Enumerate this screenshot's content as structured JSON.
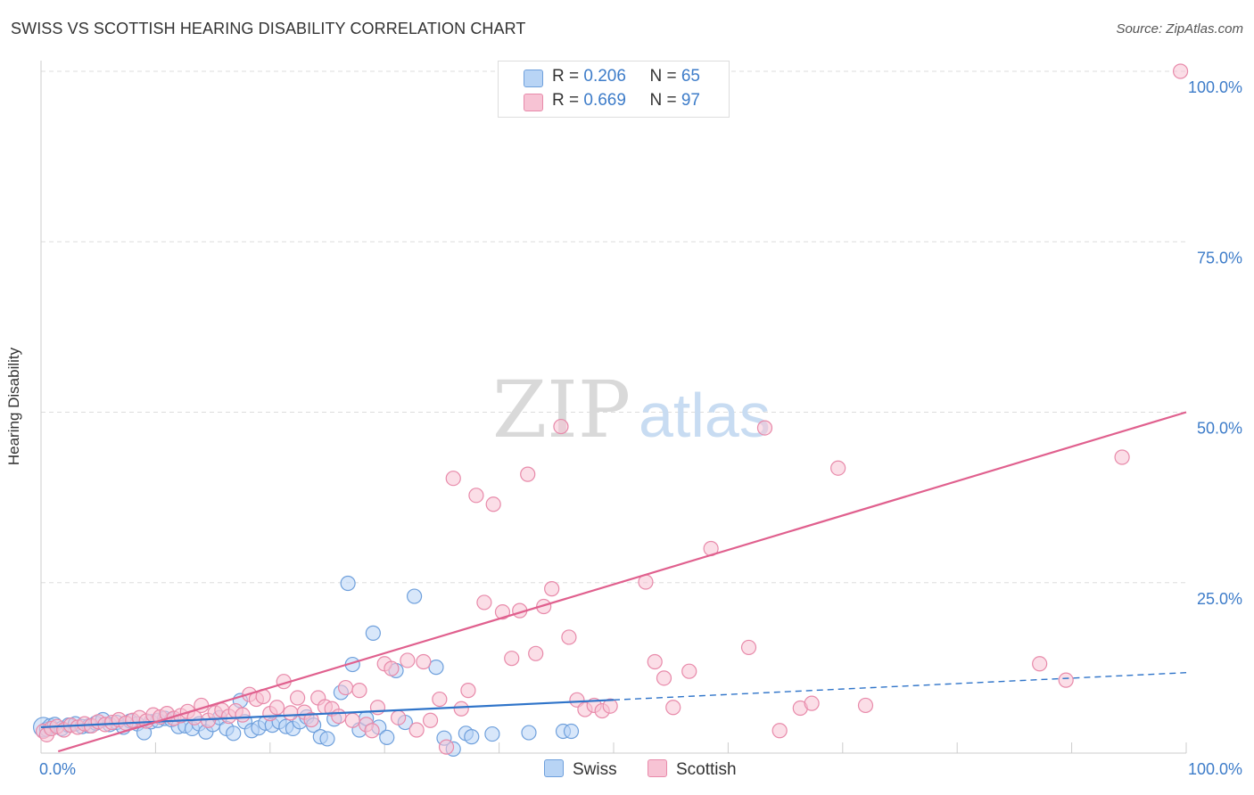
{
  "header": {
    "title": "SWISS VS SCOTTISH HEARING DISABILITY CORRELATION CHART",
    "source": "Source: ZipAtlas.com"
  },
  "watermark": {
    "zip": "ZIP",
    "atlas": "atlas"
  },
  "legend": {
    "swiss": {
      "r_label": "R = ",
      "r_value": "0.206",
      "n_label": "N = ",
      "n_value": "65"
    },
    "scottish": {
      "r_label": "R = ",
      "r_value": "0.669",
      "n_label": "N = ",
      "n_value": "97"
    }
  },
  "bottom_legend": {
    "swiss": "Swiss",
    "scottish": "Scottish"
  },
  "colors": {
    "swiss_fill": "#b8d4f5",
    "swiss_stroke": "#6fa0dc",
    "swiss_line": "#2f74c9",
    "scottish_fill": "#f7c3d4",
    "scottish_stroke": "#e88aaa",
    "scottish_line": "#e0608e",
    "tick_label": "#3d7cc9",
    "grid": "#dddddd"
  },
  "chart_data": {
    "type": "scatter",
    "title": "SWISS VS SCOTTISH HEARING DISABILITY CORRELATION CHART",
    "xlabel": "",
    "ylabel": "Hearing Disability",
    "xlim": [
      0,
      100
    ],
    "ylim": [
      0,
      100
    ],
    "x_tick_labels": [
      "0.0%",
      "100.0%"
    ],
    "y_ticks": [
      25,
      50,
      75,
      100
    ],
    "y_tick_labels": [
      "25.0%",
      "50.0%",
      "75.0%",
      "100.0%"
    ],
    "grid": true,
    "legend_position": "top-center",
    "series": [
      {
        "name": "Swiss",
        "R": 0.206,
        "N": 65,
        "trend": {
          "x0": 0,
          "y0": 3.8,
          "x1": 100,
          "y1": 11.8,
          "solid_until_x": 50
        },
        "points": [
          [
            0.2,
            3.8
          ],
          [
            0.5,
            3.5
          ],
          [
            0.8,
            4.0
          ],
          [
            1.2,
            4.2
          ],
          [
            1.8,
            3.6
          ],
          [
            2.4,
            4.1
          ],
          [
            3.0,
            4.3
          ],
          [
            3.6,
            3.9
          ],
          [
            4.2,
            4.0
          ],
          [
            4.8,
            4.4
          ],
          [
            5.4,
            4.9
          ],
          [
            6.0,
            4.2
          ],
          [
            6.6,
            4.5
          ],
          [
            7.2,
            3.8
          ],
          [
            7.8,
            4.7
          ],
          [
            8.4,
            4.3
          ],
          [
            9.0,
            3.0
          ],
          [
            9.6,
            4.6
          ],
          [
            10.2,
            4.8
          ],
          [
            10.8,
            5.1
          ],
          [
            11.4,
            4.9
          ],
          [
            12.0,
            3.9
          ],
          [
            12.6,
            4.0
          ],
          [
            13.2,
            3.6
          ],
          [
            13.8,
            4.3
          ],
          [
            14.4,
            3.1
          ],
          [
            15.0,
            4.2
          ],
          [
            15.6,
            5.2
          ],
          [
            16.2,
            3.6
          ],
          [
            16.8,
            2.9
          ],
          [
            17.4,
            7.7
          ],
          [
            17.8,
            4.6
          ],
          [
            18.4,
            3.3
          ],
          [
            19.0,
            3.7
          ],
          [
            19.6,
            4.4
          ],
          [
            20.2,
            4.1
          ],
          [
            20.8,
            4.6
          ],
          [
            21.4,
            3.9
          ],
          [
            22.0,
            3.6
          ],
          [
            22.6,
            4.6
          ],
          [
            23.2,
            5.3
          ],
          [
            23.8,
            4.1
          ],
          [
            24.4,
            2.4
          ],
          [
            25.0,
            2.1
          ],
          [
            25.6,
            5.0
          ],
          [
            26.2,
            8.9
          ],
          [
            26.8,
            24.9
          ],
          [
            27.2,
            13.0
          ],
          [
            27.8,
            3.4
          ],
          [
            28.4,
            5.1
          ],
          [
            29.0,
            17.6
          ],
          [
            29.5,
            3.8
          ],
          [
            30.2,
            2.3
          ],
          [
            31.0,
            12.1
          ],
          [
            31.8,
            4.5
          ],
          [
            32.6,
            23.0
          ],
          [
            34.5,
            12.6
          ],
          [
            35.2,
            2.2
          ],
          [
            36.0,
            0.6
          ],
          [
            37.1,
            2.9
          ],
          [
            37.6,
            2.4
          ],
          [
            39.4,
            2.8
          ],
          [
            42.6,
            3.0
          ],
          [
            45.6,
            3.2
          ],
          [
            46.3,
            3.2
          ]
        ]
      },
      {
        "name": "Scottish",
        "R": 0.669,
        "N": 97,
        "trend": {
          "x0": 0,
          "y0": -0.5,
          "x1": 100,
          "y1": 50.0
        },
        "points": [
          [
            0.2,
            3.2
          ],
          [
            0.5,
            2.7
          ],
          [
            0.9,
            3.6
          ],
          [
            1.4,
            3.9
          ],
          [
            2.0,
            3.4
          ],
          [
            2.6,
            4.1
          ],
          [
            3.2,
            3.8
          ],
          [
            3.8,
            4.3
          ],
          [
            4.4,
            4.0
          ],
          [
            5.0,
            4.6
          ],
          [
            5.6,
            4.2
          ],
          [
            6.2,
            4.5
          ],
          [
            6.8,
            4.9
          ],
          [
            7.4,
            4.4
          ],
          [
            8.0,
            4.8
          ],
          [
            8.6,
            5.2
          ],
          [
            9.2,
            4.7
          ],
          [
            9.8,
            5.6
          ],
          [
            10.4,
            5.3
          ],
          [
            11.0,
            5.8
          ],
          [
            11.6,
            5.1
          ],
          [
            12.2,
            5.5
          ],
          [
            12.8,
            6.1
          ],
          [
            13.4,
            5.2
          ],
          [
            14.0,
            7.0
          ],
          [
            14.6,
            4.8
          ],
          [
            15.2,
            5.9
          ],
          [
            15.8,
            6.3
          ],
          [
            16.4,
            5.4
          ],
          [
            17.0,
            6.2
          ],
          [
            17.6,
            5.6
          ],
          [
            18.2,
            8.6
          ],
          [
            18.8,
            7.9
          ],
          [
            19.4,
            8.3
          ],
          [
            20.0,
            5.8
          ],
          [
            20.6,
            6.7
          ],
          [
            21.2,
            10.5
          ],
          [
            21.8,
            5.9
          ],
          [
            22.4,
            8.1
          ],
          [
            23.0,
            6.0
          ],
          [
            23.6,
            4.9
          ],
          [
            24.2,
            8.1
          ],
          [
            24.8,
            6.8
          ],
          [
            25.4,
            6.5
          ],
          [
            26.0,
            5.4
          ],
          [
            26.6,
            9.6
          ],
          [
            27.2,
            4.8
          ],
          [
            27.8,
            9.2
          ],
          [
            28.4,
            4.2
          ],
          [
            28.9,
            3.3
          ],
          [
            29.4,
            6.7
          ],
          [
            30.0,
            13.1
          ],
          [
            30.6,
            12.4
          ],
          [
            31.2,
            5.2
          ],
          [
            32.0,
            13.6
          ],
          [
            32.8,
            3.4
          ],
          [
            33.4,
            13.4
          ],
          [
            34.0,
            4.8
          ],
          [
            34.8,
            7.9
          ],
          [
            35.4,
            0.9
          ],
          [
            36.0,
            40.3
          ],
          [
            36.7,
            6.5
          ],
          [
            37.3,
            9.2
          ],
          [
            38.0,
            37.8
          ],
          [
            38.7,
            22.1
          ],
          [
            39.5,
            36.5
          ],
          [
            40.3,
            20.7
          ],
          [
            41.1,
            13.9
          ],
          [
            41.8,
            20.9
          ],
          [
            42.5,
            40.9
          ],
          [
            43.2,
            14.6
          ],
          [
            43.9,
            21.5
          ],
          [
            44.6,
            24.1
          ],
          [
            45.4,
            47.9
          ],
          [
            46.1,
            17.0
          ],
          [
            46.8,
            7.8
          ],
          [
            47.5,
            6.4
          ],
          [
            48.3,
            7.0
          ],
          [
            49.0,
            6.2
          ],
          [
            49.7,
            6.9
          ],
          [
            52.8,
            25.1
          ],
          [
            53.6,
            13.4
          ],
          [
            54.4,
            11.0
          ],
          [
            55.2,
            6.7
          ],
          [
            56.6,
            12.0
          ],
          [
            58.5,
            30.0
          ],
          [
            61.8,
            15.5
          ],
          [
            63.2,
            47.7
          ],
          [
            64.5,
            3.3
          ],
          [
            66.3,
            6.6
          ],
          [
            67.3,
            7.3
          ],
          [
            69.6,
            41.8
          ],
          [
            72.0,
            7.0
          ],
          [
            87.2,
            13.1
          ],
          [
            89.5,
            10.7
          ],
          [
            94.4,
            43.4
          ],
          [
            99.5,
            100.0
          ]
        ]
      }
    ]
  }
}
